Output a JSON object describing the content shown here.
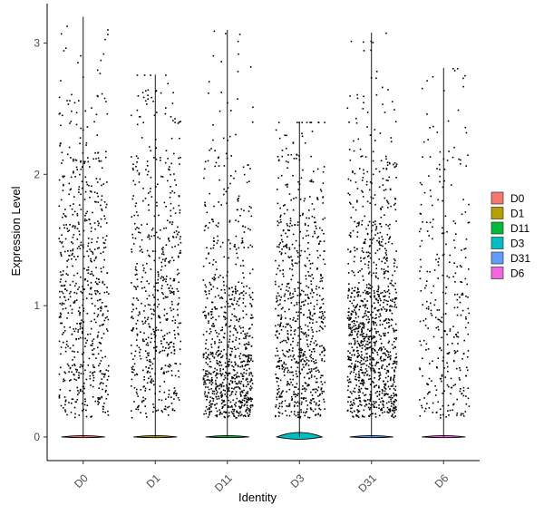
{
  "chart_data": {
    "type": "violin",
    "xlabel": "Identity",
    "ylabel": "Expression Level",
    "categories": [
      "D0",
      "D1",
      "D11",
      "D3",
      "D31",
      "D6"
    ],
    "ylim": [
      -0.18,
      3.3
    ],
    "y_ticks": [
      0,
      1,
      2,
      3
    ],
    "colors": {
      "D0": "#F8766D",
      "D1": "#B79F00",
      "D11": "#00BA38",
      "D3": "#00BFC4",
      "D31": "#619CFF",
      "D6": "#F564E3"
    },
    "series": [
      {
        "name": "D0",
        "max": 3.2,
        "pos_density": [
          0.9,
          0.95,
          0.85,
          0.6,
          0.25,
          0.05
        ]
      },
      {
        "name": "D1",
        "max": 2.76,
        "pos_density": [
          0.8,
          1.0,
          0.75,
          0.45,
          0.2,
          0.03
        ]
      },
      {
        "name": "D11",
        "max": 3.1,
        "pos_density": [
          2.5,
          1.2,
          0.5,
          0.3,
          0.1,
          0.02
        ]
      },
      {
        "name": "D3",
        "max": 2.4,
        "pos_density": [
          1.6,
          1.3,
          0.8,
          0.4,
          0.12,
          0.0
        ]
      },
      {
        "name": "D31",
        "max": 3.08,
        "pos_density": [
          2.2,
          2.1,
          0.9,
          0.5,
          0.18,
          0.03
        ]
      },
      {
        "name": "D6",
        "max": 2.81,
        "pos_density": [
          0.6,
          0.5,
          0.35,
          0.2,
          0.08,
          0.02
        ]
      }
    ],
    "legend": {
      "position": "right",
      "entries": [
        "D0",
        "D1",
        "D11",
        "D3",
        "D31",
        "D6"
      ]
    },
    "grid": false
  }
}
